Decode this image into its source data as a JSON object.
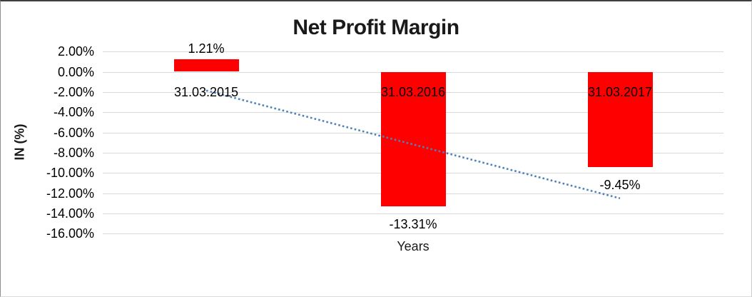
{
  "chart_data": {
    "type": "bar",
    "title": "Net Profit Margin",
    "xlabel": "Years",
    "ylabel": "IN (%)",
    "categories": [
      "31.03.2015",
      "31.03.2016",
      "31.03.2017"
    ],
    "values": [
      1.21,
      -13.31,
      -9.45
    ],
    "value_labels": [
      "1.21%",
      "-13.31%",
      "-9.45%"
    ],
    "ylim": [
      -16,
      2
    ],
    "ytick_step": 2,
    "ytick_labels": [
      "2.00%",
      "0.00%",
      "-2.00%",
      "-4.00%",
      "-6.00%",
      "-8.00%",
      "-10.00%",
      "-12.00%",
      "-14.00%",
      "-16.00%"
    ],
    "grid": true,
    "legend": "none",
    "colors": {
      "bar": "#FF0000",
      "gridline": "#D9D9D9",
      "trendline": "#4F81BD",
      "text": "#000000"
    },
    "trendline": {
      "type": "linear",
      "style": "dotted",
      "color": "#4F81BD"
    }
  }
}
